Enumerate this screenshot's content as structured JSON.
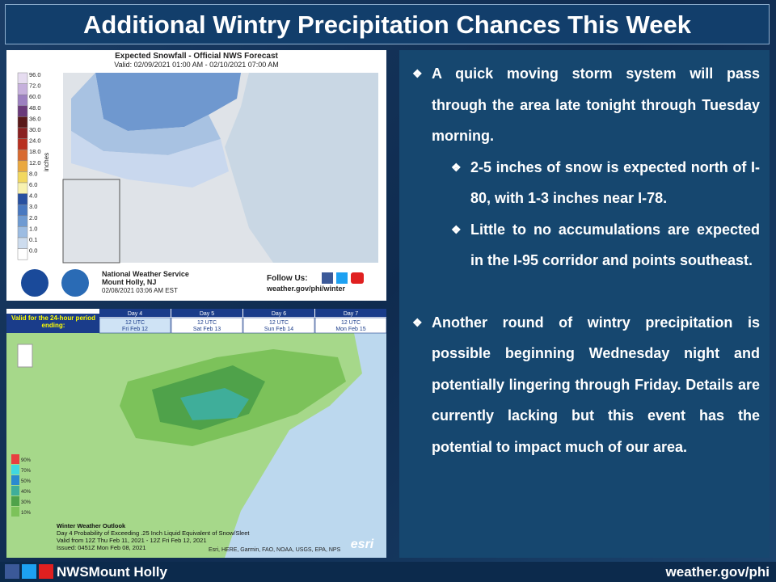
{
  "header": {
    "title": "Additional Wintry Precipitation Chances This Week"
  },
  "snowfall_map": {
    "title": "Expected Snowfall - Official NWS Forecast",
    "valid": "Valid: 02/09/2021 01:00 AM - 02/10/2021 07:00 AM",
    "legend_values": [
      "96.0",
      "72.0",
      "60.0",
      "48.0",
      "36.0",
      "30.0",
      "24.0",
      "18.0",
      "12.0",
      "8.0",
      "6.0",
      "4.0",
      "3.0",
      "2.0",
      "1.0",
      "0.1",
      "0.0"
    ],
    "legend_unit": "inches",
    "office": "National Weather Service",
    "location": "Mount Holly, NJ",
    "issued": "02/08/2021 03:06 AM EST",
    "follow": "Follow Us:",
    "url": "weather.gov/phi/winter"
  },
  "outlook_map": {
    "period_label": "Valid for the 24-hour period ending:",
    "days": [
      {
        "day": "Day 4",
        "time": "12 UTC",
        "date": "Fri Feb 12"
      },
      {
        "day": "Day 5",
        "time": "12 UTC",
        "date": "Sat Feb 13"
      },
      {
        "day": "Day 6",
        "time": "12 UTC",
        "date": "Sun Feb 14"
      },
      {
        "day": "Day 7",
        "time": "12 UTC",
        "date": "Mon Feb 15"
      }
    ],
    "legend": [
      "90%",
      "70%",
      "50%",
      "40%",
      "30%",
      "10%"
    ],
    "caption": [
      "Winter Weather Outlook",
      "Day 4 Probability of Exceeding .25 Inch Liquid Equivalent of Snow/Sleet",
      "Valid from 12Z Thu Feb 11, 2021 - 12Z Fri Feb 12, 2021",
      "Issued: 0451Z Mon Feb 08, 2021"
    ],
    "credits": "Esri, HERE, Garmin, FAO, NOAA, USGS, EPA, NPS",
    "logo": "esri"
  },
  "bullets": [
    {
      "level": 1,
      "text": "A quick moving storm system will pass through the area late tonight through Tuesday morning."
    },
    {
      "level": 2,
      "text": "2-5 inches of snow is expected north of I-80,  with 1-3 inches near I-78."
    },
    {
      "level": 2,
      "text": "Little to no accumulations are expected in the I-95 corridor and points southeast."
    },
    {
      "level": 1,
      "text": "Another round of wintry precipitation is possible beginning Wednesday night and potentially lingering through Friday. Details are currently lacking but this event has the potential to impact much of our area."
    }
  ],
  "footer": {
    "handle": "NWSMount Holly",
    "url": "weather.gov/phi"
  }
}
